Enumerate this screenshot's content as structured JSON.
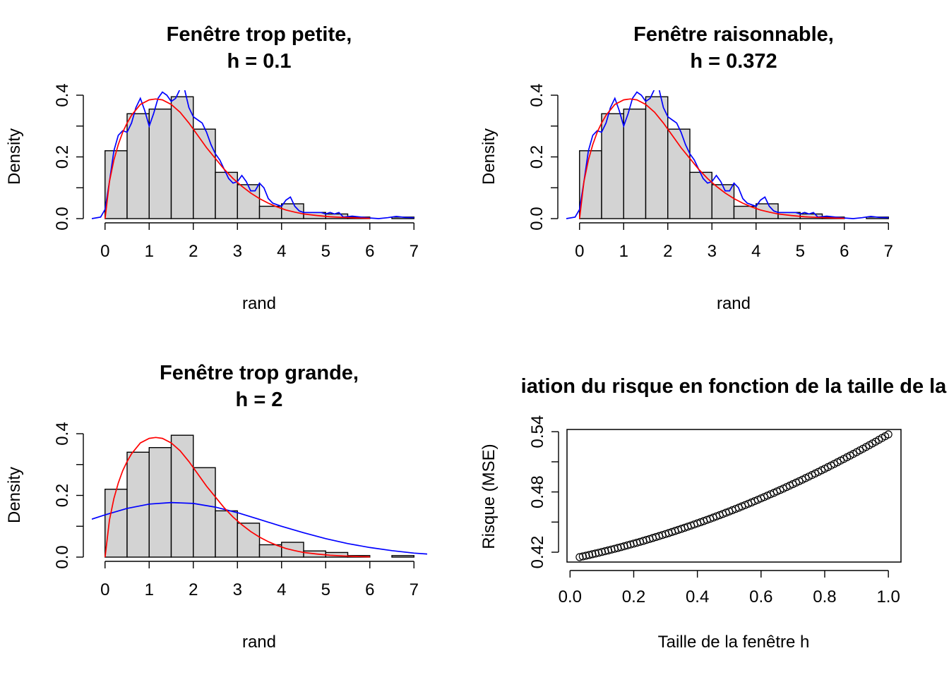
{
  "colors": {
    "bar_fill": "#d3d3d3",
    "bar_stroke": "#000000",
    "kde": "#0000ff",
    "true_density": "#ff0000",
    "axis": "#000000",
    "points": "#000000"
  },
  "chart_data": [
    {
      "type": "bar",
      "title_line1": "Fenêtre trop petite,",
      "title_line2": "h = 0.1",
      "xlabel": "rand",
      "ylabel": "Density",
      "xlim": [
        -0.3,
        7.3
      ],
      "ylim": [
        0,
        0.4
      ],
      "x_ticks": [
        "0",
        "1",
        "2",
        "3",
        "4",
        "5",
        "6",
        "7"
      ],
      "y_ticks": [
        "0.0",
        "0.2",
        "0.4"
      ],
      "bin_width": 0.5,
      "bin_starts": [
        0,
        0.5,
        1.0,
        1.5,
        2.0,
        2.5,
        3.0,
        3.5,
        4.0,
        4.5,
        5.0,
        5.5,
        6.0,
        6.5
      ],
      "values": [
        0.22,
        0.34,
        0.355,
        0.395,
        0.29,
        0.15,
        0.11,
        0.04,
        0.048,
        0.02,
        0.015,
        0.005,
        0.0,
        0.005
      ],
      "series": [
        {
          "name": "kde",
          "x": [
            -0.3,
            -0.1,
            0.0,
            0.1,
            0.2,
            0.3,
            0.4,
            0.5,
            0.6,
            0.7,
            0.8,
            0.9,
            1.0,
            1.1,
            1.2,
            1.3,
            1.4,
            1.5,
            1.6,
            1.7,
            1.8,
            1.9,
            2.0,
            2.1,
            2.2,
            2.3,
            2.4,
            2.5,
            2.6,
            2.7,
            2.8,
            2.9,
            3.0,
            3.1,
            3.2,
            3.3,
            3.4,
            3.5,
            3.6,
            3.7,
            3.8,
            3.9,
            4.0,
            4.1,
            4.2,
            4.3,
            4.4,
            4.5,
            4.7,
            4.9,
            5.0,
            5.1,
            5.2,
            5.3,
            5.4,
            5.6,
            5.8,
            6.0,
            6.2,
            6.4,
            6.6,
            6.8,
            7.0
          ],
          "y": [
            0.0,
            0.005,
            0.03,
            0.12,
            0.22,
            0.27,
            0.285,
            0.28,
            0.31,
            0.36,
            0.39,
            0.35,
            0.3,
            0.34,
            0.39,
            0.41,
            0.4,
            0.38,
            0.39,
            0.42,
            0.42,
            0.36,
            0.33,
            0.32,
            0.31,
            0.28,
            0.24,
            0.21,
            0.19,
            0.16,
            0.13,
            0.115,
            0.12,
            0.14,
            0.12,
            0.09,
            0.09,
            0.115,
            0.1,
            0.065,
            0.05,
            0.045,
            0.04,
            0.06,
            0.07,
            0.04,
            0.025,
            0.02,
            0.02,
            0.02,
            0.015,
            0.02,
            0.015,
            0.02,
            0.005,
            0.008,
            0.005,
            0.002,
            0.0,
            0.003,
            0.007,
            0.004,
            0.003
          ]
        },
        {
          "name": "true_density",
          "x": [
            0.0,
            0.1,
            0.2,
            0.3,
            0.4,
            0.5,
            0.6,
            0.8,
            1.0,
            1.15,
            1.3,
            1.5,
            1.7,
            1.9,
            2.1,
            2.3,
            2.5,
            2.7,
            2.9,
            3.1,
            3.3,
            3.5,
            3.7,
            3.9,
            4.1,
            4.3,
            4.5,
            4.8,
            5.1,
            5.4,
            5.7,
            6.0
          ],
          "y": [
            0.0,
            0.12,
            0.19,
            0.24,
            0.28,
            0.31,
            0.335,
            0.37,
            0.385,
            0.388,
            0.385,
            0.37,
            0.345,
            0.31,
            0.27,
            0.23,
            0.195,
            0.16,
            0.13,
            0.105,
            0.083,
            0.065,
            0.05,
            0.038,
            0.028,
            0.021,
            0.015,
            0.01,
            0.006,
            0.004,
            0.002,
            0.001
          ]
        }
      ]
    },
    {
      "type": "bar",
      "title_line1": "Fenêtre raisonnable,",
      "title_line2": "h = 0.372",
      "xlabel": "rand",
      "ylabel": "Density",
      "xlim": [
        -0.3,
        7.3
      ],
      "ylim": [
        0,
        0.4
      ],
      "x_ticks": [
        "0",
        "1",
        "2",
        "3",
        "4",
        "5",
        "6",
        "7"
      ],
      "y_ticks": [
        "0.0",
        "0.2",
        "0.4"
      ],
      "bin_width": 0.5,
      "bin_starts": [
        0,
        0.5,
        1.0,
        1.5,
        2.0,
        2.5,
        3.0,
        3.5,
        4.0,
        4.5,
        5.0,
        5.5,
        6.0,
        6.5
      ],
      "values": [
        0.22,
        0.34,
        0.355,
        0.395,
        0.29,
        0.15,
        0.11,
        0.04,
        0.048,
        0.02,
        0.015,
        0.005,
        0.0,
        0.005
      ],
      "series": [
        {
          "name": "kde",
          "x": [
            -0.3,
            -0.1,
            0.0,
            0.1,
            0.2,
            0.3,
            0.4,
            0.5,
            0.6,
            0.7,
            0.8,
            0.9,
            1.0,
            1.1,
            1.2,
            1.3,
            1.4,
            1.5,
            1.6,
            1.7,
            1.8,
            1.9,
            2.0,
            2.1,
            2.2,
            2.3,
            2.4,
            2.5,
            2.6,
            2.7,
            2.8,
            2.9,
            3.0,
            3.1,
            3.2,
            3.3,
            3.4,
            3.5,
            3.6,
            3.7,
            3.8,
            3.9,
            4.0,
            4.1,
            4.2,
            4.3,
            4.4,
            4.5,
            4.7,
            4.9,
            5.0,
            5.1,
            5.2,
            5.3,
            5.4,
            5.6,
            5.8,
            6.0,
            6.2,
            6.4,
            6.6,
            6.8,
            7.0
          ],
          "y": [
            0.0,
            0.005,
            0.03,
            0.12,
            0.22,
            0.27,
            0.285,
            0.28,
            0.31,
            0.36,
            0.39,
            0.35,
            0.3,
            0.34,
            0.39,
            0.41,
            0.4,
            0.38,
            0.39,
            0.42,
            0.42,
            0.36,
            0.33,
            0.32,
            0.31,
            0.28,
            0.24,
            0.21,
            0.19,
            0.16,
            0.13,
            0.115,
            0.12,
            0.14,
            0.12,
            0.09,
            0.09,
            0.115,
            0.1,
            0.065,
            0.05,
            0.045,
            0.04,
            0.06,
            0.07,
            0.04,
            0.025,
            0.02,
            0.02,
            0.02,
            0.015,
            0.02,
            0.015,
            0.02,
            0.005,
            0.008,
            0.005,
            0.002,
            0.0,
            0.003,
            0.007,
            0.004,
            0.003
          ]
        },
        {
          "name": "true_density",
          "x": [
            0.0,
            0.1,
            0.2,
            0.3,
            0.4,
            0.5,
            0.6,
            0.8,
            1.0,
            1.15,
            1.3,
            1.5,
            1.7,
            1.9,
            2.1,
            2.3,
            2.5,
            2.7,
            2.9,
            3.1,
            3.3,
            3.5,
            3.7,
            3.9,
            4.1,
            4.3,
            4.5,
            4.8,
            5.1,
            5.4,
            5.7,
            6.0
          ],
          "y": [
            0.0,
            0.12,
            0.19,
            0.24,
            0.28,
            0.31,
            0.335,
            0.37,
            0.385,
            0.388,
            0.385,
            0.37,
            0.345,
            0.31,
            0.27,
            0.23,
            0.195,
            0.16,
            0.13,
            0.105,
            0.083,
            0.065,
            0.05,
            0.038,
            0.028,
            0.021,
            0.015,
            0.01,
            0.006,
            0.004,
            0.002,
            0.001
          ]
        }
      ]
    },
    {
      "type": "bar",
      "title_line1": "Fenêtre trop grande,",
      "title_line2": "h = 2",
      "xlabel": "rand",
      "ylabel": "Density",
      "xlim": [
        -0.3,
        7.3
      ],
      "ylim": [
        0,
        0.4
      ],
      "x_ticks": [
        "0",
        "1",
        "2",
        "3",
        "4",
        "5",
        "6",
        "7"
      ],
      "y_ticks": [
        "0.0",
        "0.2",
        "0.4"
      ],
      "bin_width": 0.5,
      "bin_starts": [
        0,
        0.5,
        1.0,
        1.5,
        2.0,
        2.5,
        3.0,
        3.5,
        4.0,
        4.5,
        5.0,
        5.5,
        6.0,
        6.5
      ],
      "values": [
        0.22,
        0.34,
        0.355,
        0.395,
        0.29,
        0.15,
        0.11,
        0.04,
        0.048,
        0.02,
        0.015,
        0.005,
        0.0,
        0.005
      ],
      "series": [
        {
          "name": "kde",
          "x": [
            -0.3,
            0.0,
            0.5,
            1.0,
            1.5,
            2.0,
            2.5,
            3.0,
            3.5,
            4.0,
            4.5,
            5.0,
            5.5,
            6.0,
            6.5,
            7.0,
            7.3
          ],
          "y": [
            0.123,
            0.137,
            0.158,
            0.172,
            0.177,
            0.174,
            0.162,
            0.144,
            0.122,
            0.1,
            0.079,
            0.06,
            0.044,
            0.031,
            0.021,
            0.013,
            0.01
          ]
        },
        {
          "name": "true_density",
          "x": [
            0.0,
            0.1,
            0.2,
            0.3,
            0.4,
            0.5,
            0.6,
            0.8,
            1.0,
            1.15,
            1.3,
            1.5,
            1.7,
            1.9,
            2.1,
            2.3,
            2.5,
            2.7,
            2.9,
            3.1,
            3.3,
            3.5,
            3.7,
            3.9,
            4.1,
            4.3,
            4.5,
            4.8,
            5.1,
            5.4,
            5.7,
            6.0
          ],
          "y": [
            0.0,
            0.12,
            0.19,
            0.24,
            0.28,
            0.31,
            0.335,
            0.37,
            0.385,
            0.388,
            0.385,
            0.37,
            0.345,
            0.31,
            0.27,
            0.23,
            0.195,
            0.16,
            0.13,
            0.105,
            0.083,
            0.065,
            0.05,
            0.038,
            0.028,
            0.021,
            0.015,
            0.01,
            0.006,
            0.004,
            0.002,
            0.001
          ]
        }
      ]
    },
    {
      "type": "scatter",
      "title": "iation du risque en fonction de la taille de la",
      "xlabel": "Taille de la fenêtre h",
      "ylabel": "Risque (MSE)",
      "xlim": [
        -0.0096,
        1.0396
      ],
      "ylim": [
        0.4102,
        0.5422
      ],
      "x_ticks": [
        "0.0",
        "0.2",
        "0.4",
        "0.6",
        "0.8",
        "1.0"
      ],
      "x_tick_values": [
        0.0,
        0.2,
        0.4,
        0.6,
        0.8,
        1.0
      ],
      "y_ticks": [
        "0.42",
        "0.48",
        "0.54"
      ],
      "y_tick_values": [
        0.42,
        0.48,
        0.54
      ],
      "y_minor_ticks": [
        0.42,
        0.45,
        0.48,
        0.51,
        0.54
      ],
      "x_start": 0.03,
      "x_end": 1.0,
      "x_count": 98,
      "y_start": 0.4151,
      "y_end": 0.5373
    }
  ]
}
